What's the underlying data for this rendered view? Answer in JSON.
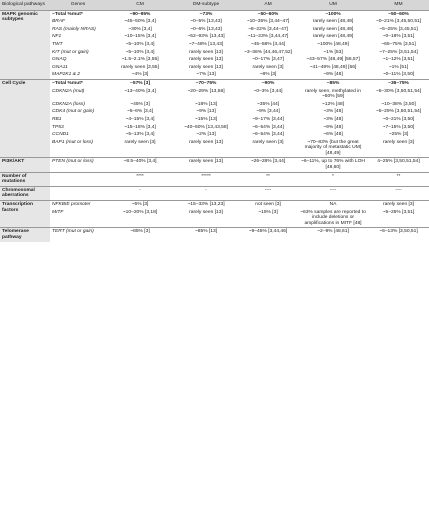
{
  "table": {
    "headers": [
      "Biological pathways",
      "Genes",
      "CM",
      "DM-subtype",
      "AM",
      "UM",
      "MM"
    ],
    "sections": [
      {
        "pathway": "MAPK genomic subtypes",
        "rows": [
          {
            "gene": "~Total %mut*",
            "total": true,
            "cells": [
              "~90–95%",
              "~73%",
              "~50–60%",
              "~100%",
              "~50–60%"
            ]
          },
          {
            "gene": "BRAF",
            "cells": [
              "~45–50% [3,4]",
              "~0–5% [13,43]",
              "~10–35% [3,44–47]",
              "rarely seen [48,49]",
              "~0–21% [3,45,50,51]"
            ]
          },
          {
            "gene": "RAS (mainly NRAS)",
            "cells": [
              "~30% [3,4]",
              "~0–6% [13,43]",
              "~8–22% [3,44–47]",
              "rarely seen [48,49]",
              "~5–25% [3,45,51]"
            ]
          },
          {
            "gene": "NF1",
            "cells": [
              "~10–15% [3,4]",
              "~52–93% [13,43]",
              "~11–23% [3,44,47]",
              "rarely seen [48,49]",
              "~0–18% [3,51]"
            ]
          },
          {
            "gene": "TWT",
            "cells": [
              "~5–10% [3,4]",
              "~7–48% [13,43]",
              "~45–58% [3,44]",
              "~100% [48,49]",
              "~65–75% [3,51]"
            ]
          },
          {
            "gene": "KIT (mut or gain)",
            "cells": [
              "~5–10% [3,4]",
              "rarely seen [13]",
              "~3–36% [44,46,47,52]",
              "~1% [53]",
              "~7–25% [3,51,54]"
            ]
          },
          {
            "gene": "GNAQ",
            "cells": [
              "~1.5–2.1% [3,55]",
              "rarely seen [13]",
              "~0–17% [3,47]",
              "~43–57% [48,49] [56,57]",
              "~1–12% [3,51]"
            ]
          },
          {
            "gene": "GNA11",
            "cells": [
              "rarely seen [3,55]",
              "rarely seen [13]",
              "rarely seen [3]",
              "~41–49% [48,49] [56]",
              "~1% [51]"
            ]
          },
          {
            "gene": "MAP2K1 & 2",
            "cells": [
              "~4% [3]",
              "~7% [13]",
              "~8% [3]",
              "~9% [48]",
              "~0–11% [3,50]"
            ]
          }
        ]
      },
      {
        "pathway": "Cell Cycle",
        "rows": [
          {
            "gene": "~Total %mut*",
            "total": true,
            "cells": [
              "~57% [3]",
              "~70–75%",
              "~90%",
              "~85%",
              "~36–75%"
            ]
          },
          {
            "gene": "CDKN2A (mut)",
            "cells": [
              "~13–40% [3,4]",
              "~20–29% [13,58]",
              "~0–3% [3,44]",
              "rarely seen, methylated in ~50% [59]",
              "~5–30% [3,50,51,54]"
            ]
          },
          {
            "gene": "CDKN2A (loss)",
            "cells": [
              "~45% [3]",
              "~18% [13]",
              "~35% [44]",
              "~12% [48]",
              "~10–38% [3,50]"
            ]
          },
          {
            "gene": "CDK4 (mut or gain)",
            "cells": [
              "~5–6% [3,4]",
              "~9% [13]",
              "~9% [3,44]",
              "~3% [48]",
              "~5–29% [3,50,51,54]"
            ]
          },
          {
            "gene": "RB1",
            "cells": [
              "~4–15% [3,4]",
              "~15% [13]",
              "~9–17% [3,44]",
              "~3% [48]",
              "~0–21% [3,50]"
            ]
          },
          {
            "gene": "TP53",
            "cells": [
              "~15–18% [3,4]",
              "~40–60% [13,43,58]",
              "~6–54% [3,44]",
              "~9% [48]",
              "~7–15% [3,50]"
            ]
          },
          {
            "gene": "CCND1",
            "cells": [
              "~5–13% [3,4]",
              "~2% [13]",
              "~6–54% [3,44]",
              "~6% [48]",
              "~25% [3]"
            ]
          },
          {
            "gene": "BAP1 (mut or loss)",
            "cells": [
              "rarely seen [3]",
              "rarely seen [13]",
              "rarely seen [3]",
              "~70–83% (but the great majority of metastatic UM) [48,49]",
              "rarely seen [3]"
            ]
          }
        ]
      },
      {
        "pathway": "PI3K/AKT",
        "rows": [
          {
            "gene": "PTEN (mut or loss)",
            "cells": [
              "~8.5–40% [3,4]",
              "rarely seen [13]",
              "~26–28% [3,44]",
              "~6–11%, up to 76% with LOH [48,60]",
              "4–25% [3,50,51,54]"
            ]
          }
        ]
      },
      {
        "pathway": "Number of mutations",
        "rows": [
          {
            "cells": [
              "****",
              "*****",
              "**",
              "*",
              "**"
            ]
          }
        ]
      },
      {
        "pathway": "Chromosomal aberrations",
        "rows": [
          {
            "cells": [
              "-",
              "-",
              "----",
              "----",
              "----"
            ]
          }
        ]
      },
      {
        "pathway": "Transcription factors",
        "rows": [
          {
            "gene": "NFKBIE promoter",
            "cells": [
              "~5% [3]",
              "~15–33% [13,23]",
              "not seen [3]",
              "NA",
              "rarely seen [3]"
            ]
          },
          {
            "gene": "MITF",
            "cells": [
              "~10–20% [3,18]",
              "rarely seen [13]",
              "~15% [3]",
              "~63% samples are reported to include deletions or amplifications in MITF [48]",
              "~5–25% [3,51]"
            ]
          }
        ]
      },
      {
        "pathway": "Telomerase pathway",
        "rows": [
          {
            "gene": "TERT (mut or gain)",
            "cells": [
              "~85% [3]",
              "~85% [13]",
              "~9–45% [3,44,46]",
              "~2–9% [48,61]",
              "~5–13% [3,50,51]"
            ]
          }
        ]
      }
    ]
  }
}
